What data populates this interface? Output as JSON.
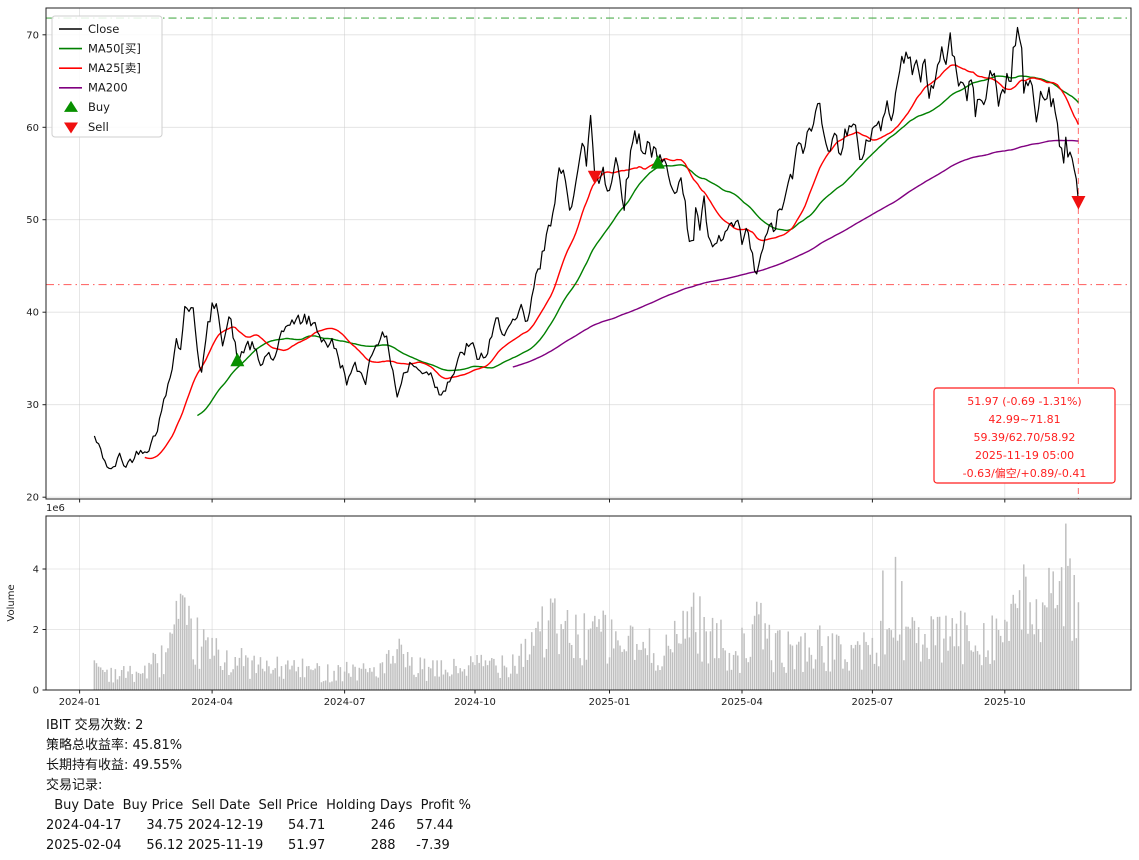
{
  "chart_data": {
    "type": "line",
    "title": "",
    "day_range": [
      7,
      475
    ],
    "x_axis": {
      "xlim": [
        -16,
        500
      ],
      "tick_days": [
        0,
        63,
        126,
        188,
        252,
        315,
        377,
        440
      ],
      "tick_labels": [
        "2024-01",
        "2024-04",
        "2024-07",
        "2024-10",
        "2025-01",
        "2025-04",
        "2025-07",
        "2025-10"
      ]
    },
    "y_axis": {
      "label": "",
      "ylim": [
        19.8,
        72.9
      ],
      "ticks": [
        20,
        30,
        40,
        50,
        60,
        70
      ]
    },
    "noise": {
      "seed": 42
    },
    "series": [
      {
        "id": "close-line",
        "name": "Close",
        "color": "#000000",
        "keypoints": [
          [
            7,
            26.5
          ],
          [
            10,
            24.8
          ],
          [
            15,
            22.7
          ],
          [
            19,
            24.3
          ],
          [
            22,
            23.4
          ],
          [
            28,
            25.0
          ],
          [
            34,
            26.0
          ],
          [
            38,
            28.5
          ],
          [
            41,
            31.0
          ],
          [
            44,
            35.0
          ],
          [
            46,
            37.3
          ],
          [
            48,
            36.0
          ],
          [
            50,
            41.3
          ],
          [
            52,
            39.4
          ],
          [
            54,
            40.8
          ],
          [
            56,
            36.5
          ],
          [
            58,
            33.8
          ],
          [
            61,
            38.0
          ],
          [
            63,
            40.3
          ],
          [
            66,
            39.8
          ],
          [
            68,
            37.6
          ],
          [
            71,
            39.6
          ],
          [
            74,
            36.6
          ],
          [
            76,
            34.8
          ],
          [
            79,
            36.5
          ],
          [
            82,
            36.2
          ],
          [
            86,
            33.9
          ],
          [
            89,
            35.6
          ],
          [
            93,
            34.8
          ],
          [
            97,
            37.3
          ],
          [
            100,
            39.4
          ],
          [
            104,
            38.8
          ],
          [
            107,
            39.3
          ],
          [
            112,
            38.4
          ],
          [
            116,
            37.2
          ],
          [
            120,
            36.6
          ],
          [
            124,
            34.5
          ],
          [
            127,
            32.9
          ],
          [
            131,
            33.6
          ],
          [
            136,
            33.1
          ],
          [
            140,
            36.4
          ],
          [
            143,
            38.2
          ],
          [
            147,
            35.9
          ],
          [
            149,
            33.9
          ],
          [
            151,
            31.2
          ],
          [
            154,
            33.3
          ],
          [
            158,
            34.4
          ],
          [
            162,
            33.4
          ],
          [
            165,
            34.1
          ],
          [
            168,
            33.2
          ],
          [
            171,
            31.4
          ],
          [
            175,
            32.9
          ],
          [
            180,
            34.3
          ],
          [
            184,
            36.2
          ],
          [
            188,
            35.5
          ],
          [
            190,
            34.9
          ],
          [
            194,
            35.6
          ],
          [
            198,
            38.3
          ],
          [
            203,
            38.6
          ],
          [
            207,
            38.0
          ],
          [
            210,
            39.6
          ],
          [
            212,
            38.8
          ],
          [
            214,
            39.3
          ],
          [
            216,
            42.5
          ],
          [
            219,
            44.6
          ],
          [
            221,
            47.0
          ],
          [
            223,
            50.8
          ],
          [
            226,
            51.6
          ],
          [
            228,
            54.0
          ],
          [
            231,
            54.6
          ],
          [
            233,
            52.3
          ],
          [
            236,
            55.1
          ],
          [
            239,
            57.3
          ],
          [
            241,
            55.9
          ],
          [
            243,
            61.0
          ],
          [
            245,
            55.3
          ],
          [
            247,
            54.2
          ],
          [
            249,
            56.5
          ],
          [
            251,
            53.8
          ],
          [
            253,
            54.5
          ],
          [
            255,
            56.4
          ],
          [
            257,
            55.2
          ],
          [
            259,
            52.8
          ],
          [
            262,
            57.1
          ],
          [
            264,
            59.6
          ],
          [
            266,
            59.0
          ],
          [
            268,
            58.1
          ],
          [
            270,
            58.6
          ],
          [
            272,
            57.8
          ],
          [
            275,
            56.1
          ],
          [
            277,
            55.4
          ],
          [
            280,
            55.2
          ],
          [
            283,
            54.9
          ],
          [
            286,
            54.4
          ],
          [
            288,
            50.8
          ],
          [
            290,
            48.1
          ],
          [
            292,
            48.6
          ],
          [
            293,
            51.0
          ],
          [
            295,
            49.4
          ],
          [
            297,
            51.1
          ],
          [
            299,
            48.0
          ],
          [
            301,
            45.7
          ],
          [
            304,
            47.2
          ],
          [
            307,
            48.1
          ],
          [
            310,
            49.2
          ],
          [
            313,
            48.2
          ],
          [
            315,
            46.9
          ],
          [
            317,
            48.4
          ],
          [
            319,
            46.5
          ],
          [
            321,
            44.3
          ],
          [
            322,
            43.3
          ],
          [
            324,
            46.4
          ],
          [
            327,
            47.9
          ],
          [
            330,
            48.9
          ],
          [
            332,
            50.2
          ],
          [
            334,
            51.4
          ],
          [
            336,
            52.3
          ],
          [
            339,
            54.6
          ],
          [
            342,
            57.4
          ],
          [
            345,
            58.4
          ],
          [
            348,
            59.3
          ],
          [
            350,
            61.4
          ],
          [
            352,
            62.1
          ],
          [
            354,
            60.7
          ],
          [
            357,
            58.9
          ],
          [
            359,
            58.4
          ],
          [
            361,
            57.8
          ],
          [
            364,
            60.1
          ],
          [
            367,
            59.4
          ],
          [
            370,
            57.9
          ],
          [
            372,
            56.6
          ],
          [
            374,
            59.1
          ],
          [
            377,
            59.9
          ],
          [
            380,
            60.4
          ],
          [
            383,
            60.9
          ],
          [
            386,
            62.1
          ],
          [
            388,
            65.4
          ],
          [
            390,
            67.9
          ],
          [
            392,
            66.4
          ],
          [
            394,
            67.2
          ],
          [
            397,
            66.6
          ],
          [
            400,
            65.7
          ],
          [
            402,
            67.1
          ],
          [
            404,
            64.9
          ],
          [
            407,
            64.3
          ],
          [
            409,
            66.4
          ],
          [
            412,
            67.9
          ],
          [
            414,
            69.9
          ],
          [
            416,
            67.2
          ],
          [
            419,
            65.2
          ],
          [
            422,
            63.6
          ],
          [
            424,
            64.6
          ],
          [
            426,
            61.9
          ],
          [
            428,
            62.3
          ],
          [
            430,
            63.9
          ],
          [
            434,
            65.9
          ],
          [
            437,
            63.0
          ],
          [
            440,
            64.6
          ],
          [
            443,
            66.6
          ],
          [
            445,
            69.4
          ],
          [
            446,
            71.2
          ],
          [
            448,
            68.3
          ],
          [
            449,
            63.6
          ],
          [
            451,
            65.2
          ],
          [
            453,
            63.0
          ],
          [
            455,
            61.2
          ],
          [
            457,
            63.3
          ],
          [
            459,
            62.9
          ],
          [
            461,
            64.7
          ],
          [
            463,
            62.9
          ],
          [
            465,
            60.8
          ],
          [
            466,
            58.8
          ],
          [
            468,
            57.6
          ],
          [
            469,
            59.3
          ],
          [
            471,
            57.0
          ],
          [
            473,
            54.6
          ],
          [
            474,
            53.2
          ],
          [
            475,
            51.97
          ]
        ]
      },
      {
        "id": "ma50-line",
        "name": "MA50[买]",
        "color": "#008000",
        "window": 50
      },
      {
        "id": "ma25-line",
        "name": "MA25[卖]",
        "color": "#ff0000",
        "window": 25
      },
      {
        "id": "ma200-line",
        "name": "MA200",
        "color": "#800080",
        "window": 200
      }
    ],
    "markers": {
      "buy": {
        "label": "Buy",
        "color": "#089000",
        "points": [
          {
            "day": 75,
            "price": 34.75
          },
          {
            "day": 275,
            "price": 56.12
          }
        ]
      },
      "sell": {
        "label": "Sell",
        "color": "#f01010",
        "points": [
          {
            "day": 245,
            "price": 54.71
          },
          {
            "day": 475,
            "price": 51.97
          }
        ]
      }
    },
    "hlines": [
      {
        "name": "range-max-line",
        "value": 71.81,
        "color": "#2e9e2e"
      },
      {
        "name": "range-min-line",
        "value": 42.99,
        "color": "#ff5555"
      }
    ],
    "vline": {
      "name": "current-date-vline",
      "day": 475,
      "color": "#ff6666"
    },
    "annotation": {
      "color": "#ff1f1f",
      "box": {
        "x": 934,
        "y": 388,
        "w": 181,
        "h": 95
      },
      "lines": [
        "51.97 (-0.69 -1.31%)",
        "42.99~71.81",
        "59.39/62.70/58.92",
        "2025-11-19 05:00",
        "-0.63/偏空/+0.89/-0.41"
      ]
    },
    "volume": {
      "ylabel": "Volume",
      "scale_label": "1e6",
      "yticks": [
        0,
        2,
        4
      ],
      "ylim": [
        0,
        5.75
      ],
      "color": "#bfbfbf",
      "keypoints": [
        [
          7,
          0.85
        ],
        [
          12,
          0.6
        ],
        [
          20,
          0.5
        ],
        [
          30,
          0.55
        ],
        [
          40,
          1.0
        ],
        [
          46,
          2.0
        ],
        [
          50,
          1.9
        ],
        [
          55,
          1.5
        ],
        [
          60,
          1.3
        ],
        [
          65,
          1.1
        ],
        [
          72,
          0.95
        ],
        [
          80,
          0.8
        ],
        [
          90,
          0.65
        ],
        [
          100,
          0.7
        ],
        [
          110,
          0.6
        ],
        [
          118,
          0.55
        ],
        [
          126,
          0.65
        ],
        [
          135,
          0.6
        ],
        [
          145,
          0.7
        ],
        [
          151,
          1.1
        ],
        [
          158,
          0.7
        ],
        [
          168,
          0.6
        ],
        [
          178,
          0.65
        ],
        [
          188,
          0.75
        ],
        [
          196,
          0.85
        ],
        [
          205,
          0.9
        ],
        [
          212,
          1.3
        ],
        [
          218,
          1.9
        ],
        [
          224,
          2.0
        ],
        [
          230,
          1.7
        ],
        [
          238,
          1.6
        ],
        [
          245,
          2.0
        ],
        [
          252,
          1.5
        ],
        [
          260,
          1.5
        ],
        [
          268,
          1.2
        ],
        [
          276,
          1.3
        ],
        [
          284,
          1.4
        ],
        [
          289,
          2.3
        ],
        [
          292,
          2.2
        ],
        [
          298,
          1.7
        ],
        [
          306,
          1.4
        ],
        [
          314,
          1.2
        ],
        [
          320,
          1.7
        ],
        [
          324,
          1.9
        ],
        [
          330,
          1.3
        ],
        [
          338,
          1.2
        ],
        [
          346,
          1.3
        ],
        [
          354,
          1.3
        ],
        [
          362,
          1.1
        ],
        [
          370,
          1.3
        ],
        [
          378,
          1.2
        ],
        [
          384,
          1.7
        ],
        [
          390,
          1.9
        ],
        [
          398,
          1.5
        ],
        [
          406,
          1.5
        ],
        [
          414,
          1.7
        ],
        [
          422,
          1.6
        ],
        [
          430,
          1.7
        ],
        [
          438,
          1.8
        ],
        [
          444,
          2.1
        ],
        [
          450,
          2.3
        ],
        [
          456,
          2.3
        ],
        [
          462,
          2.5
        ],
        [
          468,
          2.8
        ],
        [
          475,
          2.6
        ]
      ],
      "spikes": [
        [
          47,
          2.35
        ],
        [
          51,
          2.15
        ],
        [
          151,
          1.35
        ],
        [
          217,
          2.05
        ],
        [
          223,
          2.3
        ],
        [
          245,
          2.45
        ],
        [
          289,
          2.6
        ],
        [
          291,
          2.75
        ],
        [
          323,
          2.5
        ],
        [
          382,
          3.95
        ],
        [
          388,
          4.4
        ],
        [
          391,
          3.6
        ],
        [
          447,
          3.3
        ],
        [
          449,
          4.15
        ],
        [
          452,
          2.9
        ],
        [
          455,
          3.0
        ],
        [
          459,
          2.8
        ],
        [
          462,
          3.2
        ],
        [
          464,
          2.7
        ],
        [
          466,
          3.6
        ],
        [
          469,
          5.5
        ],
        [
          470,
          4.1
        ],
        [
          471,
          4.35
        ],
        [
          473,
          3.8
        ],
        [
          475,
          2.9
        ]
      ]
    }
  },
  "legend": {
    "items": [
      {
        "label": "Close",
        "sample": "line",
        "color": "#000000",
        "icon": "close-line-swatch"
      },
      {
        "label": "MA50[买]",
        "sample": "line",
        "color": "#008000",
        "icon": "ma50-line-swatch"
      },
      {
        "label": "MA25[卖]",
        "sample": "line",
        "color": "#ff0000",
        "icon": "ma25-line-swatch"
      },
      {
        "label": "MA200",
        "sample": "line",
        "color": "#800080",
        "icon": "ma200-line-swatch"
      },
      {
        "label": "Buy",
        "sample": "triangle-up",
        "color": "#089000",
        "icon": "buy-marker-swatch"
      },
      {
        "label": "Sell",
        "sample": "triangle-down",
        "color": "#f01010",
        "icon": "sell-marker-swatch"
      }
    ]
  },
  "report": {
    "symbol": "IBIT",
    "trades_line": "IBIT 交易次数: 2",
    "strategy_return_line": "策略总收益率: 45.81%",
    "hold_return_line": "长期持有收益: 49.55%",
    "records_label": "交易记录:",
    "table": {
      "header": "  Buy Date  Buy Price  Sell Date  Sell Price  Holding Days  Profit %",
      "rows_text": [
        "2024-04-17      34.75 2024-12-19      54.71           246     57.44",
        "2025-02-04      56.12 2025-11-19      51.97           288     -7.39"
      ],
      "records": [
        {
          "buy_date": "2024-04-17",
          "buy_price": 34.75,
          "sell_date": "2024-12-19",
          "sell_price": 54.71,
          "holding_days": 246,
          "profit_pct": 57.44
        },
        {
          "buy_date": "2025-02-04",
          "buy_price": 56.12,
          "sell_date": "2025-11-19",
          "sell_price": 51.97,
          "holding_days": 288,
          "profit_pct": -7.39
        }
      ]
    }
  }
}
